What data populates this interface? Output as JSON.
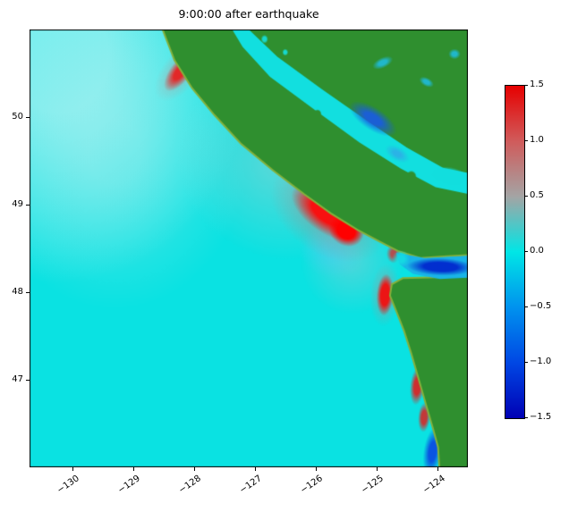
{
  "chart_data": {
    "type": "heatmap",
    "title": "9:00:00 after earthquake",
    "xlabel": "",
    "ylabel": "",
    "x_range": [
      -130.7,
      -123.5
    ],
    "y_range": [
      46.0,
      51.0
    ],
    "grid": false,
    "x_ticks": [
      {
        "v": -130,
        "label": "−130"
      },
      {
        "v": -129,
        "label": "−129"
      },
      {
        "v": -128,
        "label": "−128"
      },
      {
        "v": -127,
        "label": "−127"
      },
      {
        "v": -126,
        "label": "−126"
      },
      {
        "v": -125,
        "label": "−125"
      },
      {
        "v": -124,
        "label": "−124"
      }
    ],
    "y_ticks": [
      {
        "v": 47,
        "label": "47"
      },
      {
        "v": 48,
        "label": "48"
      },
      {
        "v": 49,
        "label": "49"
      },
      {
        "v": 50,
        "label": "50"
      }
    ],
    "colorbar": {
      "min": -1.5,
      "max": 1.5,
      "ticks": [
        {
          "value": 1.5,
          "label": "1.5"
        },
        {
          "value": 1.0,
          "label": "1.0"
        },
        {
          "value": 0.5,
          "label": "0.5"
        },
        {
          "value": 0.0,
          "label": "0.0"
        },
        {
          "value": -0.5,
          "label": "−0.5"
        },
        {
          "value": -1.0,
          "label": "−1.0"
        },
        {
          "value": -1.5,
          "label": "−1.5"
        }
      ],
      "stops": [
        {
          "value": 1.5,
          "color": "#e60000"
        },
        {
          "value": 1.0,
          "color": "#d05b5b"
        },
        {
          "value": 0.5,
          "color": "#a4a4a4"
        },
        {
          "value": 0.0,
          "color": "#00e6e6"
        },
        {
          "value": -0.5,
          "color": "#0092ee"
        },
        {
          "value": -1.0,
          "color": "#0047e4"
        },
        {
          "value": -1.5,
          "color": "#0000b4"
        }
      ]
    },
    "map": {
      "ocean_color": "#0ae2e2",
      "land_color": "#2f8f2f",
      "land_edge_color": "#84b13c",
      "land_polygons": [
        {
          "name": "vancouver-island-and-bc-mainland",
          "points": [
            [
              -128.57,
              51.1
            ],
            [
              -123.35,
              51.1
            ],
            [
              -123.35,
              48.43
            ],
            [
              -123.84,
              48.41
            ],
            [
              -124.28,
              48.39
            ],
            [
              -124.65,
              48.47
            ],
            [
              -124.9,
              48.56
            ],
            [
              -125.31,
              48.71
            ],
            [
              -125.75,
              48.9
            ],
            [
              -126.19,
              49.12
            ],
            [
              -126.7,
              49.39
            ],
            [
              -127.22,
              49.69
            ],
            [
              -127.66,
              50.02
            ],
            [
              -128.03,
              50.33
            ],
            [
              -128.32,
              50.65
            ]
          ],
          "fill": "#2f8f2f",
          "stroke": "#84b13c",
          "stroke_width": 2
        },
        {
          "name": "washington-coast",
          "points": [
            [
              -124.57,
              48.16
            ],
            [
              -123.35,
              48.18
            ],
            [
              -123.35,
              45.9
            ],
            [
              -123.96,
              45.9
            ],
            [
              -123.99,
              46.23
            ],
            [
              -124.08,
              46.46
            ],
            [
              -124.19,
              46.72
            ],
            [
              -124.31,
              47.01
            ],
            [
              -124.43,
              47.3
            ],
            [
              -124.55,
              47.56
            ],
            [
              -124.68,
              47.79
            ],
            [
              -124.78,
              47.96
            ],
            [
              -124.75,
              48.09
            ]
          ],
          "fill": "#2f8f2f",
          "stroke": "#84b13c",
          "stroke_width": 2
        }
      ],
      "water_polygons": [
        {
          "name": "strait-of-georgia",
          "points": [
            [
              -127.22,
              51.08
            ],
            [
              -126.63,
              50.69
            ],
            [
              -125.9,
              50.32
            ],
            [
              -125.16,
              49.96
            ],
            [
              -124.5,
              49.65
            ],
            [
              -123.91,
              49.42
            ],
            [
              -123.35,
              49.34
            ],
            [
              -123.35,
              49.1
            ],
            [
              -124.03,
              49.2
            ],
            [
              -124.6,
              49.41
            ],
            [
              -125.28,
              49.71
            ],
            [
              -126.01,
              50.08
            ],
            [
              -126.75,
              50.46
            ],
            [
              -127.2,
              50.8
            ],
            [
              -127.44,
              51.08
            ]
          ],
          "fill": "#12dfdf"
        },
        {
          "name": "strait-of-juan-de-fuca",
          "points": [
            [
              -124.68,
              48.45
            ],
            [
              -124.21,
              48.39
            ],
            [
              -123.35,
              48.42
            ],
            [
              -123.35,
              48.17
            ],
            [
              -123.96,
              48.15
            ],
            [
              -124.4,
              48.21
            ],
            [
              -124.62,
              48.32
            ]
          ],
          "fill": "#19b4e6"
        }
      ],
      "underlays": [
        {
          "name": "ambient-light-nw",
          "c": [
            -130.2,
            50.7
          ],
          "rx": 3.2,
          "ry": 2.6,
          "rot": 0,
          "rgb": [
            235,
            250,
            250
          ],
          "a": 0.5,
          "solid": 0.25
        },
        {
          "name": "ambient-light-w",
          "c": [
            -129.3,
            49.6
          ],
          "rx": 2.2,
          "ry": 1.8,
          "rot": 0,
          "rgb": [
            215,
            240,
            240
          ],
          "a": 0.3,
          "solid": 0.2
        },
        {
          "name": "offshore-gray-wave",
          "c": [
            -126.63,
            49.45
          ],
          "rx": 1.7,
          "ry": 1.05,
          "rot": 30,
          "rgb": [
            185,
            205,
            205
          ],
          "a": 0.4,
          "solid": 0.12
        },
        {
          "name": "offshore-gray-wave-2",
          "c": [
            -125.4,
            48.35
          ],
          "rx": 0.85,
          "ry": 0.6,
          "rot": 0,
          "rgb": [
            180,
            198,
            206
          ],
          "a": 0.33,
          "solid": 0.15
        },
        {
          "name": "offshore-blue-trough",
          "c": [
            -125.75,
            48.48
          ],
          "rx": 0.55,
          "ry": 0.32,
          "rot": 25,
          "rgb": [
            90,
            200,
            245
          ],
          "a": 0.4,
          "solid": 0.2
        },
        {
          "name": "nw-coast-red-halo",
          "c": [
            -128.22,
            50.52
          ],
          "rx": 0.3,
          "ry": 0.4,
          "rot": 38,
          "rgb": [
            205,
            140,
            140
          ],
          "a": 0.45,
          "solid": 0.2
        },
        {
          "name": "nw-coast-red",
          "c": [
            -128.22,
            50.52
          ],
          "rx": 0.17,
          "ry": 0.27,
          "rot": 38,
          "rgb": [
            238,
            20,
            20
          ],
          "a": 0.88,
          "solid": 0.4
        },
        {
          "name": "island-coast-red-halo",
          "c": [
            -125.79,
            48.91
          ],
          "rx": 1.05,
          "ry": 0.48,
          "rot": 34,
          "rgb": [
            200,
            125,
            125
          ],
          "a": 0.5,
          "solid": 0.18
        },
        {
          "name": "island-coast-red",
          "c": [
            -125.79,
            48.91
          ],
          "rx": 0.7,
          "ry": 0.24,
          "rot": 34,
          "rgb": [
            255,
            8,
            8
          ],
          "a": 0.95,
          "solid": 0.45
        },
        {
          "name": "island-coast-red-bright",
          "c": [
            -125.5,
            48.7
          ],
          "rx": 0.3,
          "ry": 0.17,
          "rot": 30,
          "rgb": [
            255,
            0,
            0
          ],
          "a": 1,
          "solid": 0.5
        },
        {
          "name": "island-tip-red",
          "c": [
            -124.72,
            48.44
          ],
          "rx": 0.12,
          "ry": 0.11,
          "rot": 0,
          "rgb": [
            230,
            30,
            30
          ],
          "a": 0.75,
          "solid": 0.35
        },
        {
          "name": "wa-north-red-halo",
          "c": [
            -124.86,
            47.97
          ],
          "rx": 0.25,
          "ry": 0.36,
          "rot": 4,
          "rgb": [
            205,
            130,
            130
          ],
          "a": 0.45,
          "solid": 0.2
        },
        {
          "name": "wa-north-red",
          "c": [
            -124.86,
            47.97
          ],
          "rx": 0.14,
          "ry": 0.24,
          "rot": 4,
          "rgb": [
            248,
            8,
            8
          ],
          "a": 0.92,
          "solid": 0.5
        },
        {
          "name": "wa-mid-red",
          "c": [
            -124.33,
            46.93
          ],
          "rx": 0.12,
          "ry": 0.22,
          "rot": 6,
          "rgb": [
            240,
            15,
            15
          ],
          "a": 0.85,
          "solid": 0.45
        },
        {
          "name": "wa-south-red",
          "c": [
            -124.22,
            46.57
          ],
          "rx": 0.1,
          "ry": 0.17,
          "rot": 4,
          "rgb": [
            240,
            15,
            15
          ],
          "a": 0.8,
          "solid": 0.45
        },
        {
          "name": "wa-bottom-blue",
          "c": [
            -124.08,
            46.18
          ],
          "rx": 0.15,
          "ry": 0.28,
          "rot": 8,
          "rgb": [
            10,
            60,
            225
          ],
          "a": 0.85,
          "solid": 0.4
        }
      ],
      "overlays": [
        {
          "name": "georgia-blue-patch",
          "c": [
            -125.06,
            49.98
          ],
          "rx": 0.45,
          "ry": 0.13,
          "rot": 33,
          "rgb": [
            25,
            90,
            230
          ],
          "a": 0.9,
          "solid": 0.35
        },
        {
          "name": "georgia-blue-patch-2",
          "c": [
            -124.66,
            49.58
          ],
          "rx": 0.22,
          "ry": 0.08,
          "rot": 30,
          "rgb": [
            60,
            150,
            235
          ],
          "a": 0.6,
          "solid": 0.3
        },
        {
          "name": "georgia-south-cyan",
          "c": [
            -123.8,
            49.33
          ],
          "rx": 0.3,
          "ry": 0.1,
          "rot": 10,
          "rgb": [
            18,
            222,
            222
          ],
          "a": 0.95,
          "solid": 0.5
        },
        {
          "name": "juan-de-fuca-deep-blue",
          "c": [
            -123.95,
            48.29
          ],
          "rx": 0.55,
          "ry": 0.1,
          "rot": 2,
          "rgb": [
            0,
            35,
            205
          ],
          "a": 0.92,
          "solid": 0.5
        },
        {
          "name": "juan-de-fuca-entrance-cyan",
          "c": [
            -124.6,
            48.38
          ],
          "rx": 0.15,
          "ry": 0.1,
          "rot": 0,
          "rgb": [
            20,
            225,
            225
          ],
          "a": 0.8,
          "solid": 0.4
        },
        {
          "name": "mainland-lake-1",
          "c": [
            -126.84,
            50.89
          ],
          "rx": 0.06,
          "ry": 0.05,
          "rot": 0,
          "rgb": [
            20,
            225,
            225
          ],
          "a": 0.9,
          "solid": 0.5
        },
        {
          "name": "mainland-lake-2",
          "c": [
            -126.5,
            50.74
          ],
          "rx": 0.05,
          "ry": 0.04,
          "rot": 0,
          "rgb": [
            20,
            225,
            225
          ],
          "a": 0.9,
          "solid": 0.5
        },
        {
          "name": "mainland-inlet-1",
          "c": [
            -124.9,
            50.62
          ],
          "rx": 0.18,
          "ry": 0.06,
          "rot": -25,
          "rgb": [
            30,
            190,
            230
          ],
          "a": 0.85,
          "solid": 0.4
        },
        {
          "name": "mainland-inlet-2",
          "c": [
            -124.18,
            50.4
          ],
          "rx": 0.13,
          "ry": 0.05,
          "rot": 28,
          "rgb": [
            30,
            190,
            230
          ],
          "a": 0.85,
          "solid": 0.4
        },
        {
          "name": "mainland-inlet-3",
          "c": [
            -123.72,
            50.72
          ],
          "rx": 0.1,
          "ry": 0.06,
          "rot": 0,
          "rgb": [
            30,
            190,
            230
          ],
          "a": 0.85,
          "solid": 0.4
        },
        {
          "name": "gulf-island-1",
          "c": [
            -125.97,
            50.03
          ],
          "rx": 0.07,
          "ry": 0.06,
          "rot": 0,
          "rgb": [
            47,
            143,
            47
          ],
          "a": 1,
          "solid": 0.7
        },
        {
          "name": "gulf-island-2",
          "c": [
            -124.43,
            49.32
          ],
          "rx": 0.09,
          "ry": 0.07,
          "rot": 0,
          "rgb": [
            47,
            143,
            47
          ],
          "a": 1,
          "solid": 0.7
        },
        {
          "name": "gulf-island-3",
          "c": [
            -124.13,
            49.12
          ],
          "rx": 0.11,
          "ry": 0.08,
          "rot": 0,
          "rgb": [
            47,
            143,
            47
          ],
          "a": 1,
          "solid": 0.7
        }
      ]
    }
  }
}
